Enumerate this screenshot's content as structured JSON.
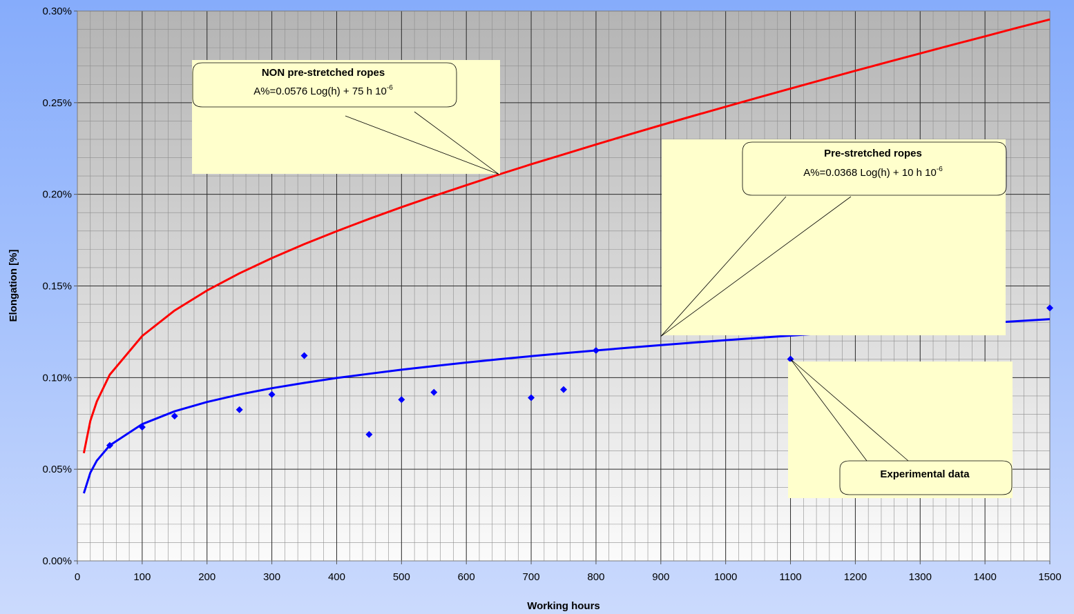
{
  "chart_data": {
    "type": "scatter",
    "xlabel": "Working hours",
    "ylabel": "Elongation [%]",
    "xlim": [
      0,
      1500
    ],
    "ylim": [
      0,
      0.3
    ],
    "x_ticks": [
      0,
      100,
      200,
      300,
      400,
      500,
      600,
      700,
      800,
      900,
      1000,
      1100,
      1200,
      1300,
      1400,
      1500
    ],
    "y_ticks": [
      0,
      0.05,
      0.1,
      0.15,
      0.2,
      0.25,
      0.3
    ],
    "x_tick_labels": [
      "0",
      "100",
      "200",
      "300",
      "400",
      "500",
      "600",
      "700",
      "800",
      "900",
      "1000",
      "1100",
      "1200",
      "1300",
      "1400",
      "1500"
    ],
    "y_tick_labels": [
      "0.00%",
      "0.05%",
      "0.10%",
      "0.15%",
      "0.20%",
      "0.25%",
      "0.30%"
    ],
    "grid": true,
    "series": [
      {
        "kind": "line",
        "color": "#ff0000",
        "x": [
          10,
          20,
          30,
          50,
          100,
          150,
          200,
          250,
          300,
          350,
          400,
          450,
          500,
          550,
          600,
          650,
          700,
          750,
          800,
          850,
          900,
          950,
          1000,
          1050,
          1100,
          1150,
          1200,
          1250,
          1300,
          1350,
          1400,
          1450,
          1500
        ],
        "y": [
          0.0588,
          0.0764,
          0.087,
          0.1016,
          0.1227,
          0.1366,
          0.1475,
          0.1569,
          0.1652,
          0.1728,
          0.1799,
          0.1866,
          0.193,
          0.1991,
          0.205,
          0.2108,
          0.2164,
          0.2218,
          0.2272,
          0.2325,
          0.2377,
          0.2428,
          0.2478,
          0.2528,
          0.2577,
          0.2626,
          0.2674,
          0.2722,
          0.2769,
          0.2816,
          0.2862,
          0.2909,
          0.2954
        ]
      },
      {
        "kind": "line",
        "color": "#0000ff",
        "x": [
          10,
          20,
          30,
          50,
          100,
          150,
          200,
          250,
          300,
          350,
          400,
          450,
          500,
          550,
          600,
          650,
          700,
          750,
          800,
          850,
          900,
          950,
          1000,
          1050,
          1100,
          1150,
          1200,
          1250,
          1300,
          1350,
          1400,
          1450,
          1500
        ],
        "y": [
          0.0369,
          0.0481,
          0.0547,
          0.063,
          0.0746,
          0.0816,
          0.0867,
          0.0908,
          0.0942,
          0.0971,
          0.0998,
          0.1021,
          0.1043,
          0.1063,
          0.1082,
          0.11,
          0.1117,
          0.1133,
          0.1148,
          0.1163,
          0.1177,
          0.1191,
          0.1204,
          0.1217,
          0.1229,
          0.1241,
          0.1253,
          0.1264,
          0.1276,
          0.1287,
          0.1298,
          0.1308,
          0.1319
        ]
      },
      {
        "kind": "scatter",
        "color": "#0000ff",
        "x": [
          50,
          100,
          150,
          250,
          300,
          350,
          450,
          500,
          550,
          700,
          750,
          800,
          1100,
          1500
        ],
        "y": [
          0.063,
          0.073,
          0.079,
          0.0825,
          0.0908,
          0.112,
          0.069,
          0.088,
          0.092,
          0.089,
          0.0935,
          0.1148,
          0.1101,
          0.138
        ]
      }
    ],
    "annotations": [
      {
        "title": "NON pre-stretched ropes",
        "formula": "A%=0.0576 Log(h) + 75 h 10",
        "sup": "-6",
        "target": [
          650,
          0.211
        ]
      },
      {
        "title": "Pre-stretched ropes",
        "formula": "A%=0.0368 Log(h) + 10 h 10",
        "sup": "-6",
        "target": [
          900,
          0.1225
        ]
      },
      {
        "title": "Experimental data",
        "target": [
          1100,
          0.1101
        ]
      }
    ]
  }
}
